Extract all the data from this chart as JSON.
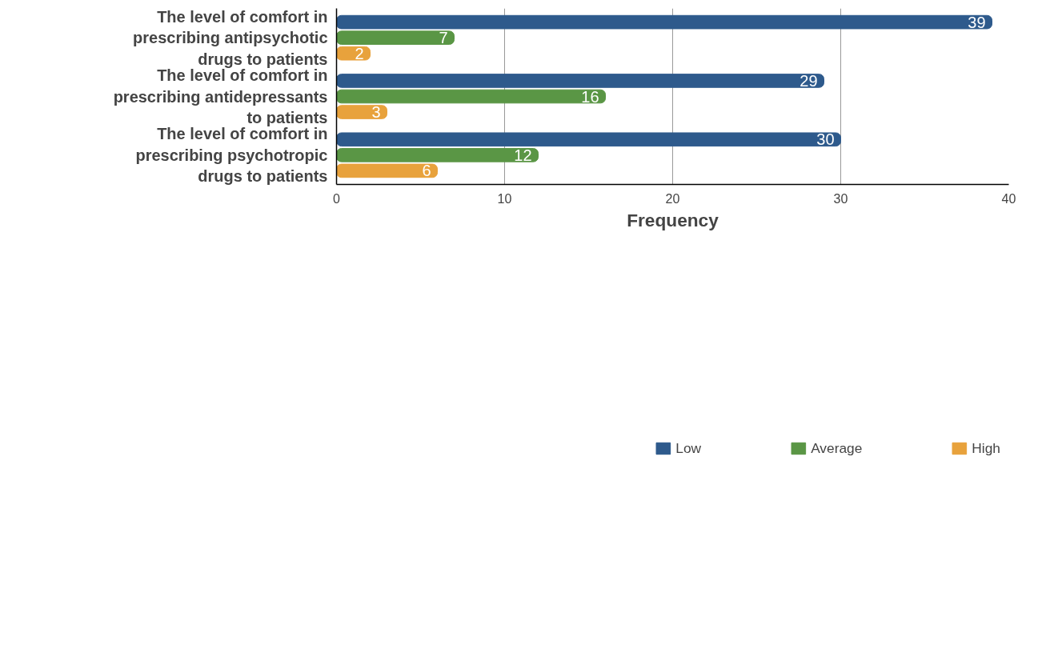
{
  "chart_data": {
    "type": "bar",
    "orientation": "horizontal",
    "xlabel": "Frequency",
    "categories": [
      "The level of comfort in prescribing antipsychotic drugs to patients",
      "The level of comfort in prescribing antidepressants  to patients",
      "The level of comfort in prescribing psychotropic drugs to patients"
    ],
    "series": [
      {
        "name": "Low",
        "color": "#2e5a8c",
        "values": [
          39,
          29,
          30
        ]
      },
      {
        "name": "Average",
        "color": "#5a9645",
        "values": [
          7,
          16,
          12
        ]
      },
      {
        "name": "High",
        "color": "#e8a23c",
        "values": [
          2,
          3,
          6
        ]
      }
    ],
    "xlim": [
      0,
      40
    ],
    "xticks": [
      0,
      10,
      20,
      30,
      40
    ],
    "grid": "x",
    "legend": "bottom",
    "data_labels": true
  }
}
